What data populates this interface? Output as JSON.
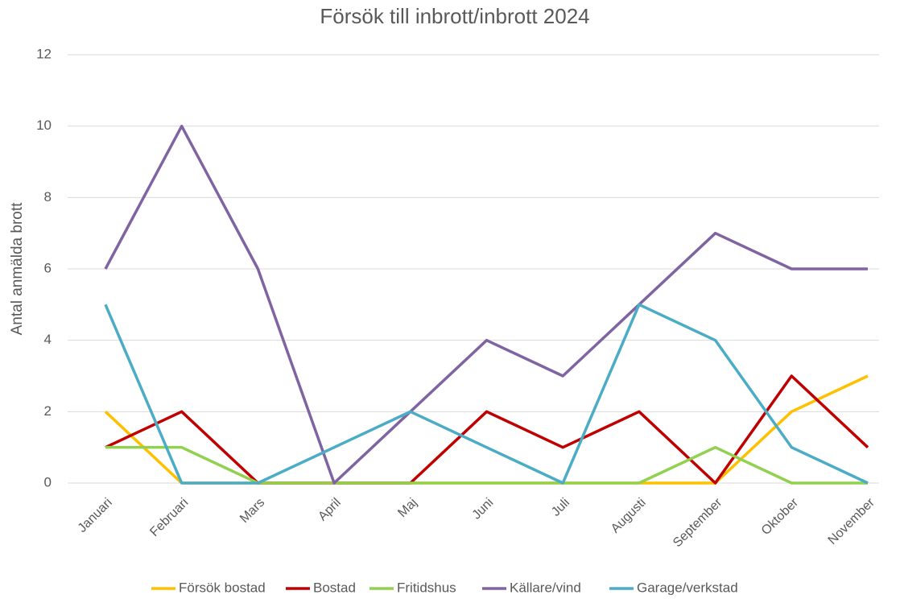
{
  "chart_data": {
    "type": "line",
    "title": "Försök till inbrott/inbrott 2024",
    "y_label": "Antal anmälda brott",
    "categories": [
      "Januari",
      "Februari",
      "Mars",
      "April",
      "Maj",
      "Juni",
      "Juli",
      "Augusti",
      "September",
      "Oktober",
      "November"
    ],
    "series": [
      {
        "name": "Försök bostad",
        "color": "#FFC000",
        "values": [
          2,
          0,
          0,
          0,
          0,
          0,
          0,
          0,
          0,
          2,
          3
        ]
      },
      {
        "name": "Bostad",
        "color": "#C00000",
        "values": [
          1,
          2,
          0,
          0,
          0,
          2,
          1,
          2,
          0,
          3,
          1
        ]
      },
      {
        "name": "Fritidshus",
        "color": "#92D050",
        "values": [
          1,
          1,
          0,
          0,
          0,
          0,
          0,
          0,
          1,
          0,
          0
        ]
      },
      {
        "name": "Källare/vind",
        "color": "#8064A2",
        "values": [
          6,
          10,
          6,
          0,
          2,
          4,
          3,
          5,
          7,
          6,
          6
        ]
      },
      {
        "name": "Garage/verkstad",
        "color": "#4BACC6",
        "values": [
          5,
          0,
          0,
          1,
          2,
          1,
          0,
          5,
          4,
          1,
          0
        ]
      }
    ],
    "ylim": [
      0,
      12
    ],
    "yticks": [
      0,
      2,
      4,
      6,
      8,
      10,
      12
    ],
    "grid": true,
    "legend": "bottom"
  }
}
